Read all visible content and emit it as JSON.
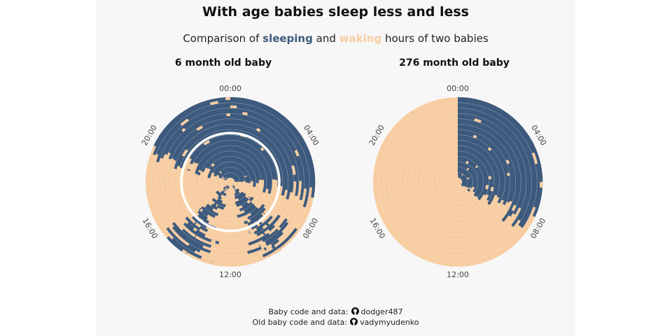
{
  "title": "With age babies sleep less and less",
  "subtitle": {
    "prefix": "Comparison of",
    "sleeping": "sleeping",
    "and": "and",
    "waking": "waking",
    "suffix": "hours  of two babies"
  },
  "colors": {
    "sleeping": "#3d5a7d",
    "waking": "#f7cda1",
    "panel": "#f7f7f7"
  },
  "chart_data": [
    {
      "type": "radial-timeline",
      "title": "6 month old baby",
      "angular_axis": "time of day",
      "ticks": [
        "00:00",
        "04:00",
        "08:00",
        "12:00",
        "16:00",
        "20:00"
      ],
      "sleep_windows_hours": [
        [
          19.5,
          24
        ],
        [
          0,
          6.5
        ],
        [
          9,
          10.5
        ],
        [
          13.5,
          15
        ]
      ],
      "highlight_ring": true
    },
    {
      "type": "radial-timeline",
      "title": "276 month old baby",
      "angular_axis": "time of day",
      "ticks": [
        "00:00",
        "04:00",
        "08:00",
        "12:00",
        "16:00",
        "20:00"
      ],
      "sleep_windows_hours": [
        [
          0,
          8
        ]
      ],
      "highlight_ring": false
    }
  ],
  "caption": {
    "line1_label": "Baby  code and data:",
    "line1_handle": "dodger487",
    "line2_label": "Old baby code and data:",
    "line2_handle": "vadymyudenko",
    "icon": "github-icon"
  }
}
